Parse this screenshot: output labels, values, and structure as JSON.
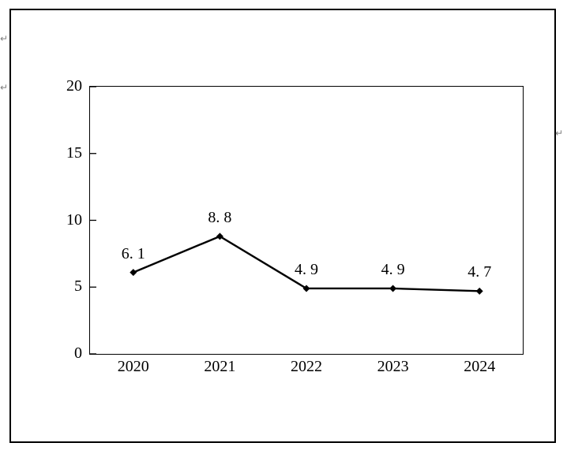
{
  "page": {
    "background": "#ffffff",
    "border_color": "#000000"
  },
  "decorations": {
    "paragraph_mark": "↵",
    "paragraph_mark_color": "#7f7f7f"
  },
  "chart_data": {
    "type": "line",
    "title": "",
    "xlabel": "",
    "ylabel": "",
    "categories": [
      "2020",
      "2021",
      "2022",
      "2023",
      "2024"
    ],
    "series": [
      {
        "name": "value",
        "values": [
          6.1,
          8.8,
          4.9,
          4.9,
          4.7
        ]
      }
    ],
    "data_labels": [
      "6. 1",
      "8. 8",
      "4. 9",
      "4. 9",
      "4. 7"
    ],
    "ylim": [
      0,
      20
    ],
    "yticks": [
      0,
      5,
      10,
      15,
      20
    ],
    "ytick_labels": [
      "0",
      "5",
      "10",
      "15",
      "20"
    ],
    "grid": false,
    "legend": "none",
    "line_color": "#000000",
    "marker": "diamond",
    "marker_color": "#000000"
  }
}
